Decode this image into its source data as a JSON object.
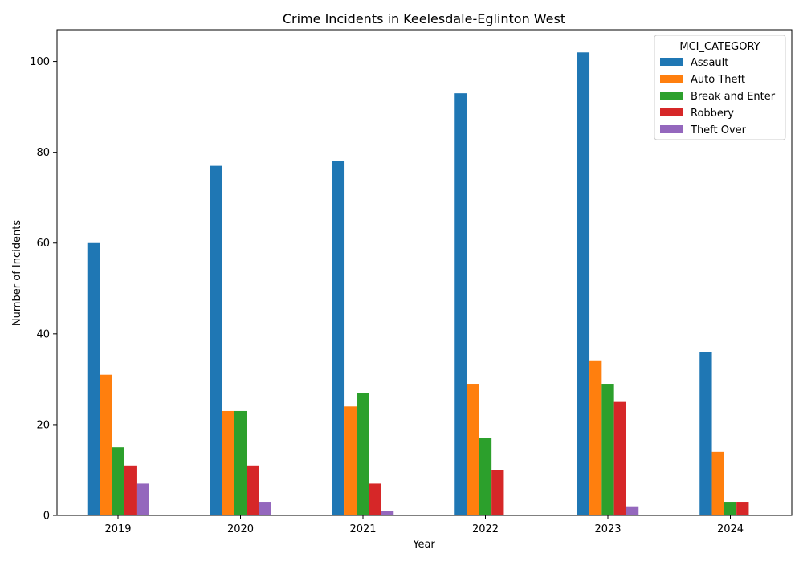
{
  "chart_data": {
    "type": "bar",
    "title": "Crime Incidents in Keelesdale-Eglinton West",
    "xlabel": "Year",
    "ylabel": "Number of Incidents",
    "ylim": [
      0,
      107
    ],
    "yticks": [
      0,
      20,
      40,
      60,
      80,
      100
    ],
    "categories": [
      "2019",
      "2020",
      "2021",
      "2022",
      "2023",
      "2024"
    ],
    "legend": {
      "title": "MCI_CATEGORY",
      "position": "top-right"
    },
    "grid": false,
    "series": [
      {
        "name": "Assault",
        "color": "#1f77b4",
        "values": [
          60,
          77,
          78,
          93,
          102,
          36
        ]
      },
      {
        "name": "Auto Theft",
        "color": "#ff7f0e",
        "values": [
          31,
          23,
          24,
          29,
          34,
          14
        ]
      },
      {
        "name": "Break and Enter",
        "color": "#2ca02c",
        "values": [
          15,
          23,
          27,
          17,
          29,
          3
        ]
      },
      {
        "name": "Robbery",
        "color": "#d62728",
        "values": [
          11,
          11,
          7,
          10,
          25,
          3
        ]
      },
      {
        "name": "Theft Over",
        "color": "#9467bd",
        "values": [
          7,
          3,
          1,
          0,
          2,
          0
        ]
      }
    ]
  }
}
